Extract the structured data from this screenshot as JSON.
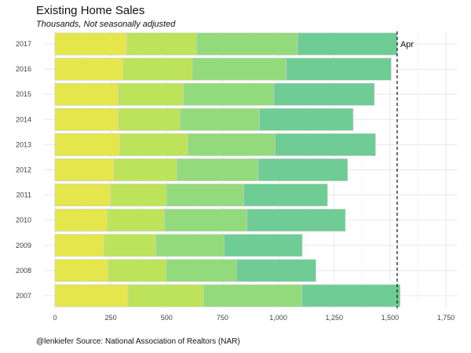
{
  "chart_data": {
    "type": "bar",
    "orientation": "horizontal",
    "stacked": true,
    "title": "Existing Home Sales",
    "subtitle": "Thousands, Not seasonally adjusted",
    "caption": "@lenkiefer Source: National Association of Realtors (NAR)",
    "categories": [
      "2007",
      "2008",
      "2009",
      "2010",
      "2011",
      "2012",
      "2013",
      "2014",
      "2015",
      "2016",
      "2017"
    ],
    "series": [
      {
        "color": "#e4e64c",
        "values": [
          327,
          238,
          220,
          235,
          250,
          265,
          290,
          285,
          285,
          305,
          322
        ]
      },
      {
        "color": "#bde35a",
        "values": [
          338,
          260,
          232,
          255,
          250,
          280,
          305,
          275,
          290,
          310,
          312
        ]
      },
      {
        "color": "#93da7c",
        "values": [
          440,
          315,
          305,
          370,
          345,
          365,
          390,
          355,
          405,
          420,
          452
        ]
      },
      {
        "color": "#6ecc94",
        "values": [
          440,
          355,
          350,
          440,
          375,
          400,
          450,
          420,
          450,
          470,
          446
        ]
      }
    ],
    "xlim": [
      0,
      1750
    ],
    "xticks": [
      0,
      250,
      500,
      750,
      1000,
      1250,
      1500,
      1750
    ],
    "xtick_labels": [
      "0",
      "250",
      "500",
      "750",
      "1,000",
      "1,250",
      "1,500",
      "1,750"
    ],
    "reference_line": {
      "x": 1532,
      "label": "Apr",
      "style": "dashed"
    },
    "grid": true,
    "legend": "none"
  }
}
